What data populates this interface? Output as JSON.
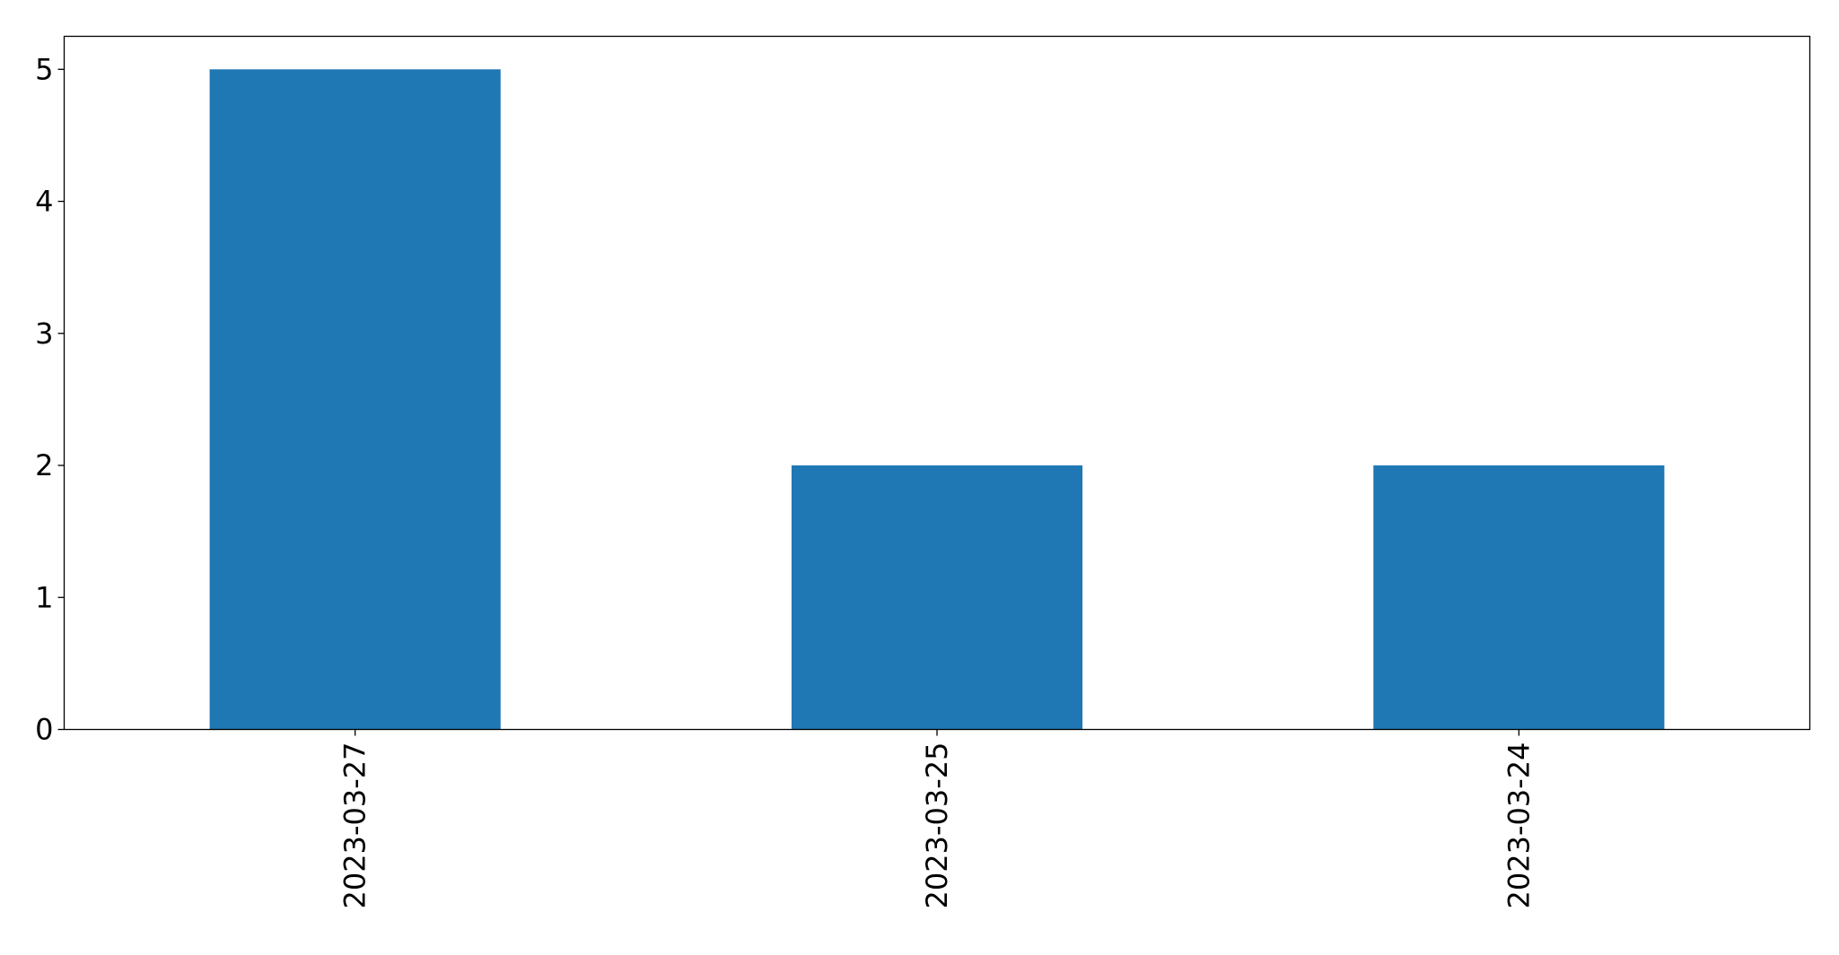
{
  "chart_data": {
    "type": "bar",
    "title": "",
    "xlabel": "",
    "ylabel": "",
    "categories": [
      "2023-03-27",
      "2023-03-25",
      "2023-03-24"
    ],
    "values": [
      5,
      2,
      2
    ],
    "ylim": [
      0,
      5.25
    ],
    "yticks": [
      0,
      1,
      2,
      3,
      4,
      5
    ],
    "grid": false,
    "legend": "none",
    "bar_color": "#1f77b4",
    "x_tick_rotation": "vertical"
  }
}
